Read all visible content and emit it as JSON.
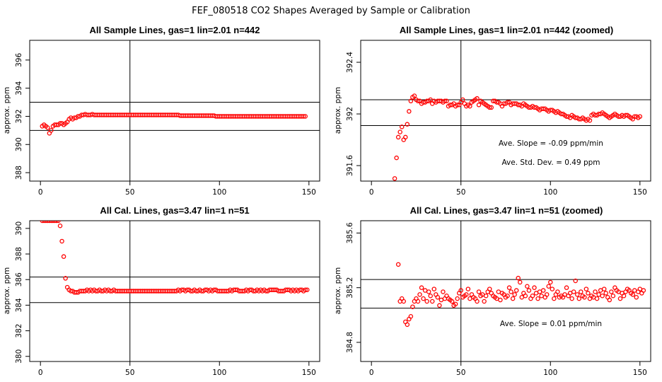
{
  "title": "FEF_080518  CO2 Shapes Averaged by Sample or Calibration",
  "chart_data": [
    {
      "type": "scatter",
      "title": "All Sample Lines, gas=1 lin=2.01 n=442",
      "ylabel": "approx. ppm",
      "xlim": [
        -6,
        156
      ],
      "ylim": [
        387.4,
        397.4
      ],
      "xticks": [
        0,
        50,
        100,
        150
      ],
      "yticks": [
        388,
        390,
        392,
        394,
        396
      ],
      "hlines": [
        391,
        393
      ],
      "vline": 50,
      "annotations": [],
      "series": [
        {
          "color": "#ff0000",
          "x_start": 1,
          "values": [
            391.3,
            391.4,
            391.3,
            391.2,
            390.8,
            391.0,
            391.3,
            391.4,
            391.4,
            391.4,
            391.5,
            391.5,
            391.4,
            391.5,
            391.6,
            391.8,
            391.9,
            391.8,
            391.9,
            391.9,
            392.0,
            392.0,
            392.1,
            392.1,
            392.15,
            392.1,
            392.1,
            392.1,
            392.15,
            392.1,
            392.1,
            392.1,
            392.1,
            392.1,
            392.1,
            392.1,
            392.1,
            392.1,
            392.1,
            392.1,
            392.1,
            392.1,
            392.1,
            392.1,
            392.1,
            392.1,
            392.1,
            392.1,
            392.1,
            392.1,
            392.1,
            392.1,
            392.1,
            392.1,
            392.1,
            392.1,
            392.1,
            392.1,
            392.1,
            392.1,
            392.1,
            392.1,
            392.1,
            392.1,
            392.1,
            392.1,
            392.1,
            392.1,
            392.1,
            392.1,
            392.1,
            392.1,
            392.1,
            392.1,
            392.1,
            392.1,
            392.1,
            392.05,
            392.05,
            392.05,
            392.05,
            392.05,
            392.05,
            392.05,
            392.05,
            392.05,
            392.05,
            392.05,
            392.05,
            392.05,
            392.05,
            392.05,
            392.05,
            392.05,
            392.05,
            392.05,
            392.05,
            392.0,
            392.0,
            392.0,
            392.0,
            392.0,
            392.0,
            392.0,
            392.0,
            392.0,
            392.0,
            392.0,
            392.0,
            392.0,
            392.0,
            392.0,
            392.0,
            392.0,
            392.0,
            392.0,
            392.0,
            392.0,
            392.0,
            392.0,
            392.0,
            392.0,
            392.0,
            392.0,
            392.0,
            392.0,
            392.0,
            392.0,
            392.0,
            392.0,
            392.0,
            392.0,
            392.0,
            392.0,
            392.0,
            392.0,
            392.0,
            392.0,
            392.0,
            392.0,
            392.0,
            392.0,
            392.0,
            392.0,
            392.0,
            392.0,
            392.0,
            392.0
          ]
        }
      ]
    },
    {
      "type": "scatter",
      "title": "All Sample Lines, gas=1 lin=2.01 n=442 (zoomed)",
      "ylabel": "approx. ppm",
      "xlim": [
        -6,
        156
      ],
      "ylim": [
        391.48,
        392.57
      ],
      "xticks": [
        0,
        50,
        100,
        150
      ],
      "yticks": [
        391.6,
        392.0,
        392.4
      ],
      "hlines": [
        391.91,
        392.11
      ],
      "vline": 50,
      "annotations": [
        "Ave. Slope = -0.09  ppm/min",
        "Ave. Std. Dev. = 0.49  ppm"
      ],
      "series": [
        {
          "color": "#ff0000",
          "x_start": 13,
          "values": [
            391.5,
            391.66,
            391.82,
            391.86,
            391.9,
            391.8,
            391.82,
            391.92,
            392.02,
            392.1,
            392.13,
            392.14,
            392.11,
            392.1,
            392.1,
            392.08,
            392.09,
            392.09,
            392.1,
            392.1,
            392.11,
            392.08,
            392.1,
            392.09,
            392.1,
            392.1,
            392.1,
            392.09,
            392.1,
            392.1,
            392.06,
            392.07,
            392.07,
            392.08,
            392.06,
            392.07,
            392.07,
            392.09,
            392.11,
            392.08,
            392.06,
            392.07,
            392.06,
            392.09,
            392.1,
            392.11,
            392.12,
            392.07,
            392.1,
            392.09,
            392.08,
            392.07,
            392.06,
            392.05,
            392.05,
            392.1,
            392.1,
            392.09,
            392.09,
            392.08,
            392.06,
            392.08,
            392.08,
            392.09,
            392.09,
            392.07,
            392.08,
            392.08,
            392.08,
            392.07,
            392.07,
            392.06,
            392.08,
            392.07,
            392.06,
            392.05,
            392.05,
            392.06,
            392.05,
            392.05,
            392.04,
            392.03,
            392.04,
            392.04,
            392.04,
            392.03,
            392.02,
            392.03,
            392.03,
            392.02,
            392.01,
            392.02,
            392.01,
            392.0,
            392.0,
            391.99,
            391.98,
            391.98,
            391.97,
            391.99,
            391.98,
            391.97,
            391.97,
            391.96,
            391.96,
            391.97,
            391.96,
            391.95,
            391.96,
            391.95,
            391.99,
            392.0,
            391.99,
            391.99,
            392.0,
            392.0,
            392.01,
            392.0,
            391.99,
            391.98,
            391.97,
            391.98,
            391.99,
            392.0,
            391.99,
            391.98,
            391.98,
            391.99,
            391.98,
            391.99,
            391.99,
            391.98,
            391.97,
            391.96,
            391.98,
            391.98,
            391.97,
            391.98
          ]
        }
      ]
    },
    {
      "type": "scatter",
      "title": "All Cal. Lines, gas=3.47 lin=1 n=51",
      "ylabel": "approx. ppm",
      "xlim": [
        -6,
        156
      ],
      "ylim": [
        379.6,
        390.6
      ],
      "xticks": [
        0,
        50,
        100,
        150
      ],
      "yticks": [
        380,
        382,
        384,
        386,
        388,
        390
      ],
      "hlines": [
        384.2,
        386.2
      ],
      "vline": 50,
      "annotations": [],
      "series": [
        {
          "color": "#ff0000",
          "x_start": 1,
          "values": [
            390.6,
            390.6,
            390.6,
            390.6,
            390.6,
            390.6,
            390.6,
            390.6,
            390.6,
            390.6,
            390.2,
            389.0,
            387.8,
            386.1,
            385.4,
            385.2,
            385.1,
            385.1,
            385.0,
            385.0,
            385.0,
            385.1,
            385.1,
            385.1,
            385.1,
            385.2,
            385.1,
            385.2,
            385.1,
            385.2,
            385.1,
            385.1,
            385.2,
            385.1,
            385.1,
            385.2,
            385.1,
            385.2,
            385.1,
            385.1,
            385.2,
            385.1,
            385.1,
            385.1,
            385.1,
            385.1,
            385.1,
            385.1,
            385.1,
            385.1,
            385.1,
            385.1,
            385.1,
            385.1,
            385.1,
            385.1,
            385.1,
            385.1,
            385.1,
            385.1,
            385.1,
            385.1,
            385.1,
            385.1,
            385.1,
            385.1,
            385.1,
            385.1,
            385.1,
            385.1,
            385.1,
            385.1,
            385.1,
            385.1,
            385.1,
            385.1,
            385.2,
            385.1,
            385.2,
            385.2,
            385.1,
            385.2,
            385.2,
            385.1,
            385.1,
            385.2,
            385.1,
            385.1,
            385.2,
            385.1,
            385.1,
            385.2,
            385.2,
            385.1,
            385.2,
            385.1,
            385.2,
            385.2,
            385.1,
            385.1,
            385.1,
            385.1,
            385.1,
            385.1,
            385.1,
            385.2,
            385.1,
            385.2,
            385.2,
            385.2,
            385.1,
            385.1,
            385.1,
            385.1,
            385.2,
            385.1,
            385.2,
            385.2,
            385.1,
            385.1,
            385.2,
            385.1,
            385.2,
            385.1,
            385.2,
            385.1,
            385.1,
            385.2,
            385.2,
            385.2,
            385.2,
            385.2,
            385.1,
            385.1,
            385.1,
            385.1,
            385.2,
            385.2,
            385.2,
            385.1,
            385.2,
            385.1,
            385.2,
            385.1,
            385.2,
            385.2,
            385.1,
            385.2,
            385.2
          ]
        }
      ]
    },
    {
      "type": "scatter",
      "title": "All Cal. Lines, gas=3.47 lin=1 n=51 (zoomed)",
      "ylabel": "approx. ppm",
      "xlim": [
        -6,
        156
      ],
      "ylim": [
        384.66,
        385.69
      ],
      "xticks": [
        0,
        50,
        100,
        150
      ],
      "yticks": [
        384.8,
        385.2,
        385.6
      ],
      "hlines": [
        385.05,
        385.26
      ],
      "vline": 50,
      "annotations": [
        "Ave. Slope = 0.01  ppm/min"
      ],
      "series": [
        {
          "color": "#ff0000",
          "x_start": 15,
          "values": [
            385.37,
            385.1,
            385.12,
            385.1,
            384.95,
            384.93,
            384.97,
            384.99,
            385.06,
            385.1,
            385.12,
            385.1,
            385.15,
            385.2,
            385.12,
            385.18,
            385.1,
            385.17,
            385.14,
            385.1,
            385.19,
            385.15,
            385.13,
            385.07,
            385.11,
            385.17,
            385.12,
            385.14,
            385.12,
            385.11,
            385.1,
            385.07,
            385.08,
            385.12,
            385.16,
            385.18,
            385.13,
            385.14,
            385.15,
            385.19,
            385.12,
            385.15,
            385.13,
            385.12,
            385.1,
            385.17,
            385.14,
            385.15,
            385.1,
            385.14,
            385.17,
            385.19,
            385.16,
            385.14,
            385.13,
            385.12,
            385.17,
            385.11,
            385.16,
            385.15,
            385.13,
            385.14,
            385.2,
            385.17,
            385.12,
            385.15,
            385.18,
            385.27,
            385.24,
            385.13,
            385.16,
            385.14,
            385.21,
            385.18,
            385.12,
            385.14,
            385.2,
            385.16,
            385.12,
            385.17,
            385.14,
            385.18,
            385.13,
            385.15,
            385.21,
            385.24,
            385.19,
            385.12,
            385.15,
            385.17,
            385.13,
            385.14,
            385.13,
            385.15,
            385.2,
            385.14,
            385.16,
            385.12,
            385.17,
            385.25,
            385.15,
            385.12,
            385.17,
            385.14,
            385.13,
            385.19,
            385.16,
            385.12,
            385.14,
            385.13,
            385.17,
            385.12,
            385.15,
            385.18,
            385.14,
            385.19,
            385.16,
            385.13,
            385.11,
            385.17,
            385.14,
            385.2,
            385.18,
            385.17,
            385.12,
            385.16,
            385.14,
            385.17,
            385.19,
            385.18,
            385.16,
            385.15,
            385.18,
            385.13,
            385.17,
            385.19,
            385.16,
            385.18
          ]
        }
      ]
    }
  ]
}
